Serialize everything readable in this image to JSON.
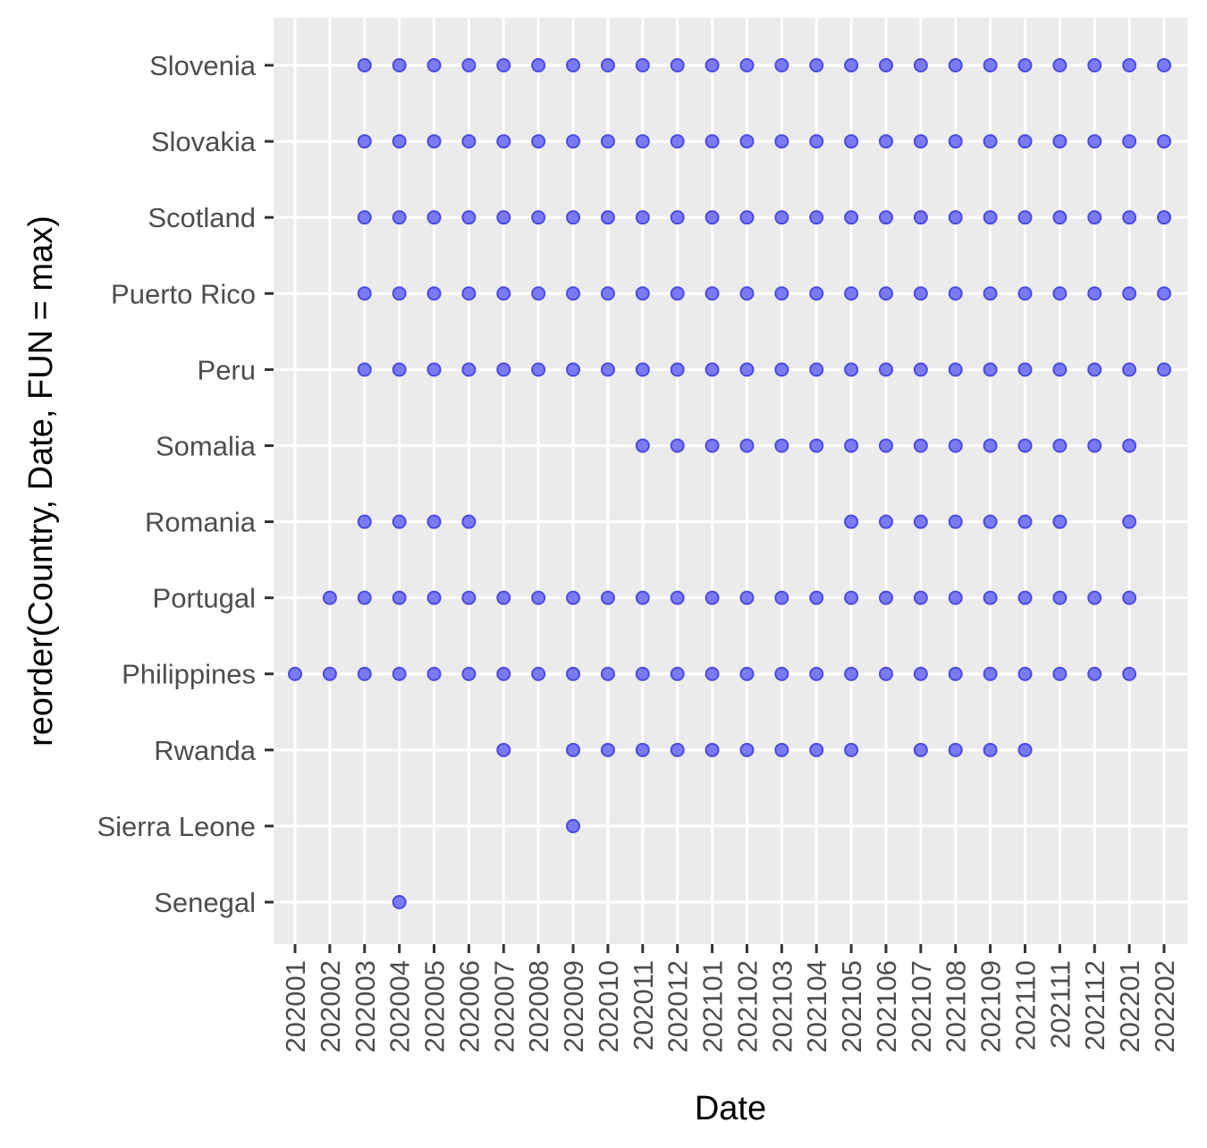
{
  "chart_data": {
    "type": "scatter",
    "xlabel": "Date",
    "ylabel": "reorder(Country, Date, FUN = max)",
    "x_categories": [
      "202001",
      "202002",
      "202003",
      "202004",
      "202005",
      "202006",
      "202007",
      "202008",
      "202009",
      "202010",
      "202011",
      "202012",
      "202101",
      "202102",
      "202103",
      "202104",
      "202105",
      "202106",
      "202107",
      "202108",
      "202109",
      "202110",
      "202111",
      "202112",
      "202201",
      "202202"
    ],
    "y_categories": [
      "Senegal",
      "Sierra Leone",
      "Rwanda",
      "Philippines",
      "Portugal",
      "Romania",
      "Somalia",
      "Peru",
      "Puerto Rico",
      "Scotland",
      "Slovakia",
      "Slovenia"
    ],
    "grid": true,
    "legend": "none",
    "colors": {
      "panel": "#ebebeb",
      "grid": "#ffffff",
      "point_fill": "#7a7af5",
      "point_stroke": "#4a4ae0",
      "tick": "#333333"
    },
    "points": [
      {
        "country": "Slovenia",
        "dates": [
          "202003",
          "202004",
          "202005",
          "202006",
          "202007",
          "202008",
          "202009",
          "202010",
          "202011",
          "202012",
          "202101",
          "202102",
          "202103",
          "202104",
          "202105",
          "202106",
          "202107",
          "202108",
          "202109",
          "202110",
          "202111",
          "202112",
          "202201",
          "202202"
        ]
      },
      {
        "country": "Slovakia",
        "dates": [
          "202003",
          "202004",
          "202005",
          "202006",
          "202007",
          "202008",
          "202009",
          "202010",
          "202011",
          "202012",
          "202101",
          "202102",
          "202103",
          "202104",
          "202105",
          "202106",
          "202107",
          "202108",
          "202109",
          "202110",
          "202111",
          "202112",
          "202201",
          "202202"
        ]
      },
      {
        "country": "Scotland",
        "dates": [
          "202003",
          "202004",
          "202005",
          "202006",
          "202007",
          "202008",
          "202009",
          "202010",
          "202011",
          "202012",
          "202101",
          "202102",
          "202103",
          "202104",
          "202105",
          "202106",
          "202107",
          "202108",
          "202109",
          "202110",
          "202111",
          "202112",
          "202201",
          "202202"
        ]
      },
      {
        "country": "Puerto Rico",
        "dates": [
          "202003",
          "202004",
          "202005",
          "202006",
          "202007",
          "202008",
          "202009",
          "202010",
          "202011",
          "202012",
          "202101",
          "202102",
          "202103",
          "202104",
          "202105",
          "202106",
          "202107",
          "202108",
          "202109",
          "202110",
          "202111",
          "202112",
          "202201",
          "202202"
        ]
      },
      {
        "country": "Peru",
        "dates": [
          "202003",
          "202004",
          "202005",
          "202006",
          "202007",
          "202008",
          "202009",
          "202010",
          "202011",
          "202012",
          "202101",
          "202102",
          "202103",
          "202104",
          "202105",
          "202106",
          "202107",
          "202108",
          "202109",
          "202110",
          "202111",
          "202112",
          "202201",
          "202202"
        ]
      },
      {
        "country": "Somalia",
        "dates": [
          "202011",
          "202012",
          "202101",
          "202102",
          "202103",
          "202104",
          "202105",
          "202106",
          "202107",
          "202108",
          "202109",
          "202110",
          "202111",
          "202112",
          "202201"
        ]
      },
      {
        "country": "Romania",
        "dates": [
          "202003",
          "202004",
          "202005",
          "202006",
          "202105",
          "202106",
          "202107",
          "202108",
          "202109",
          "202110",
          "202111",
          "202201"
        ]
      },
      {
        "country": "Portugal",
        "dates": [
          "202002",
          "202003",
          "202004",
          "202005",
          "202006",
          "202007",
          "202008",
          "202009",
          "202010",
          "202011",
          "202012",
          "202101",
          "202102",
          "202103",
          "202104",
          "202105",
          "202106",
          "202107",
          "202108",
          "202109",
          "202110",
          "202111",
          "202112",
          "202201"
        ]
      },
      {
        "country": "Philippines",
        "dates": [
          "202001",
          "202002",
          "202003",
          "202004",
          "202005",
          "202006",
          "202007",
          "202008",
          "202009",
          "202010",
          "202011",
          "202012",
          "202101",
          "202102",
          "202103",
          "202104",
          "202105",
          "202106",
          "202107",
          "202108",
          "202109",
          "202110",
          "202111",
          "202112",
          "202201"
        ]
      },
      {
        "country": "Rwanda",
        "dates": [
          "202007",
          "202009",
          "202010",
          "202011",
          "202012",
          "202101",
          "202102",
          "202103",
          "202104",
          "202105",
          "202107",
          "202108",
          "202109",
          "202110"
        ]
      },
      {
        "country": "Sierra Leone",
        "dates": [
          "202009"
        ]
      },
      {
        "country": "Senegal",
        "dates": [
          "202004"
        ]
      }
    ]
  }
}
